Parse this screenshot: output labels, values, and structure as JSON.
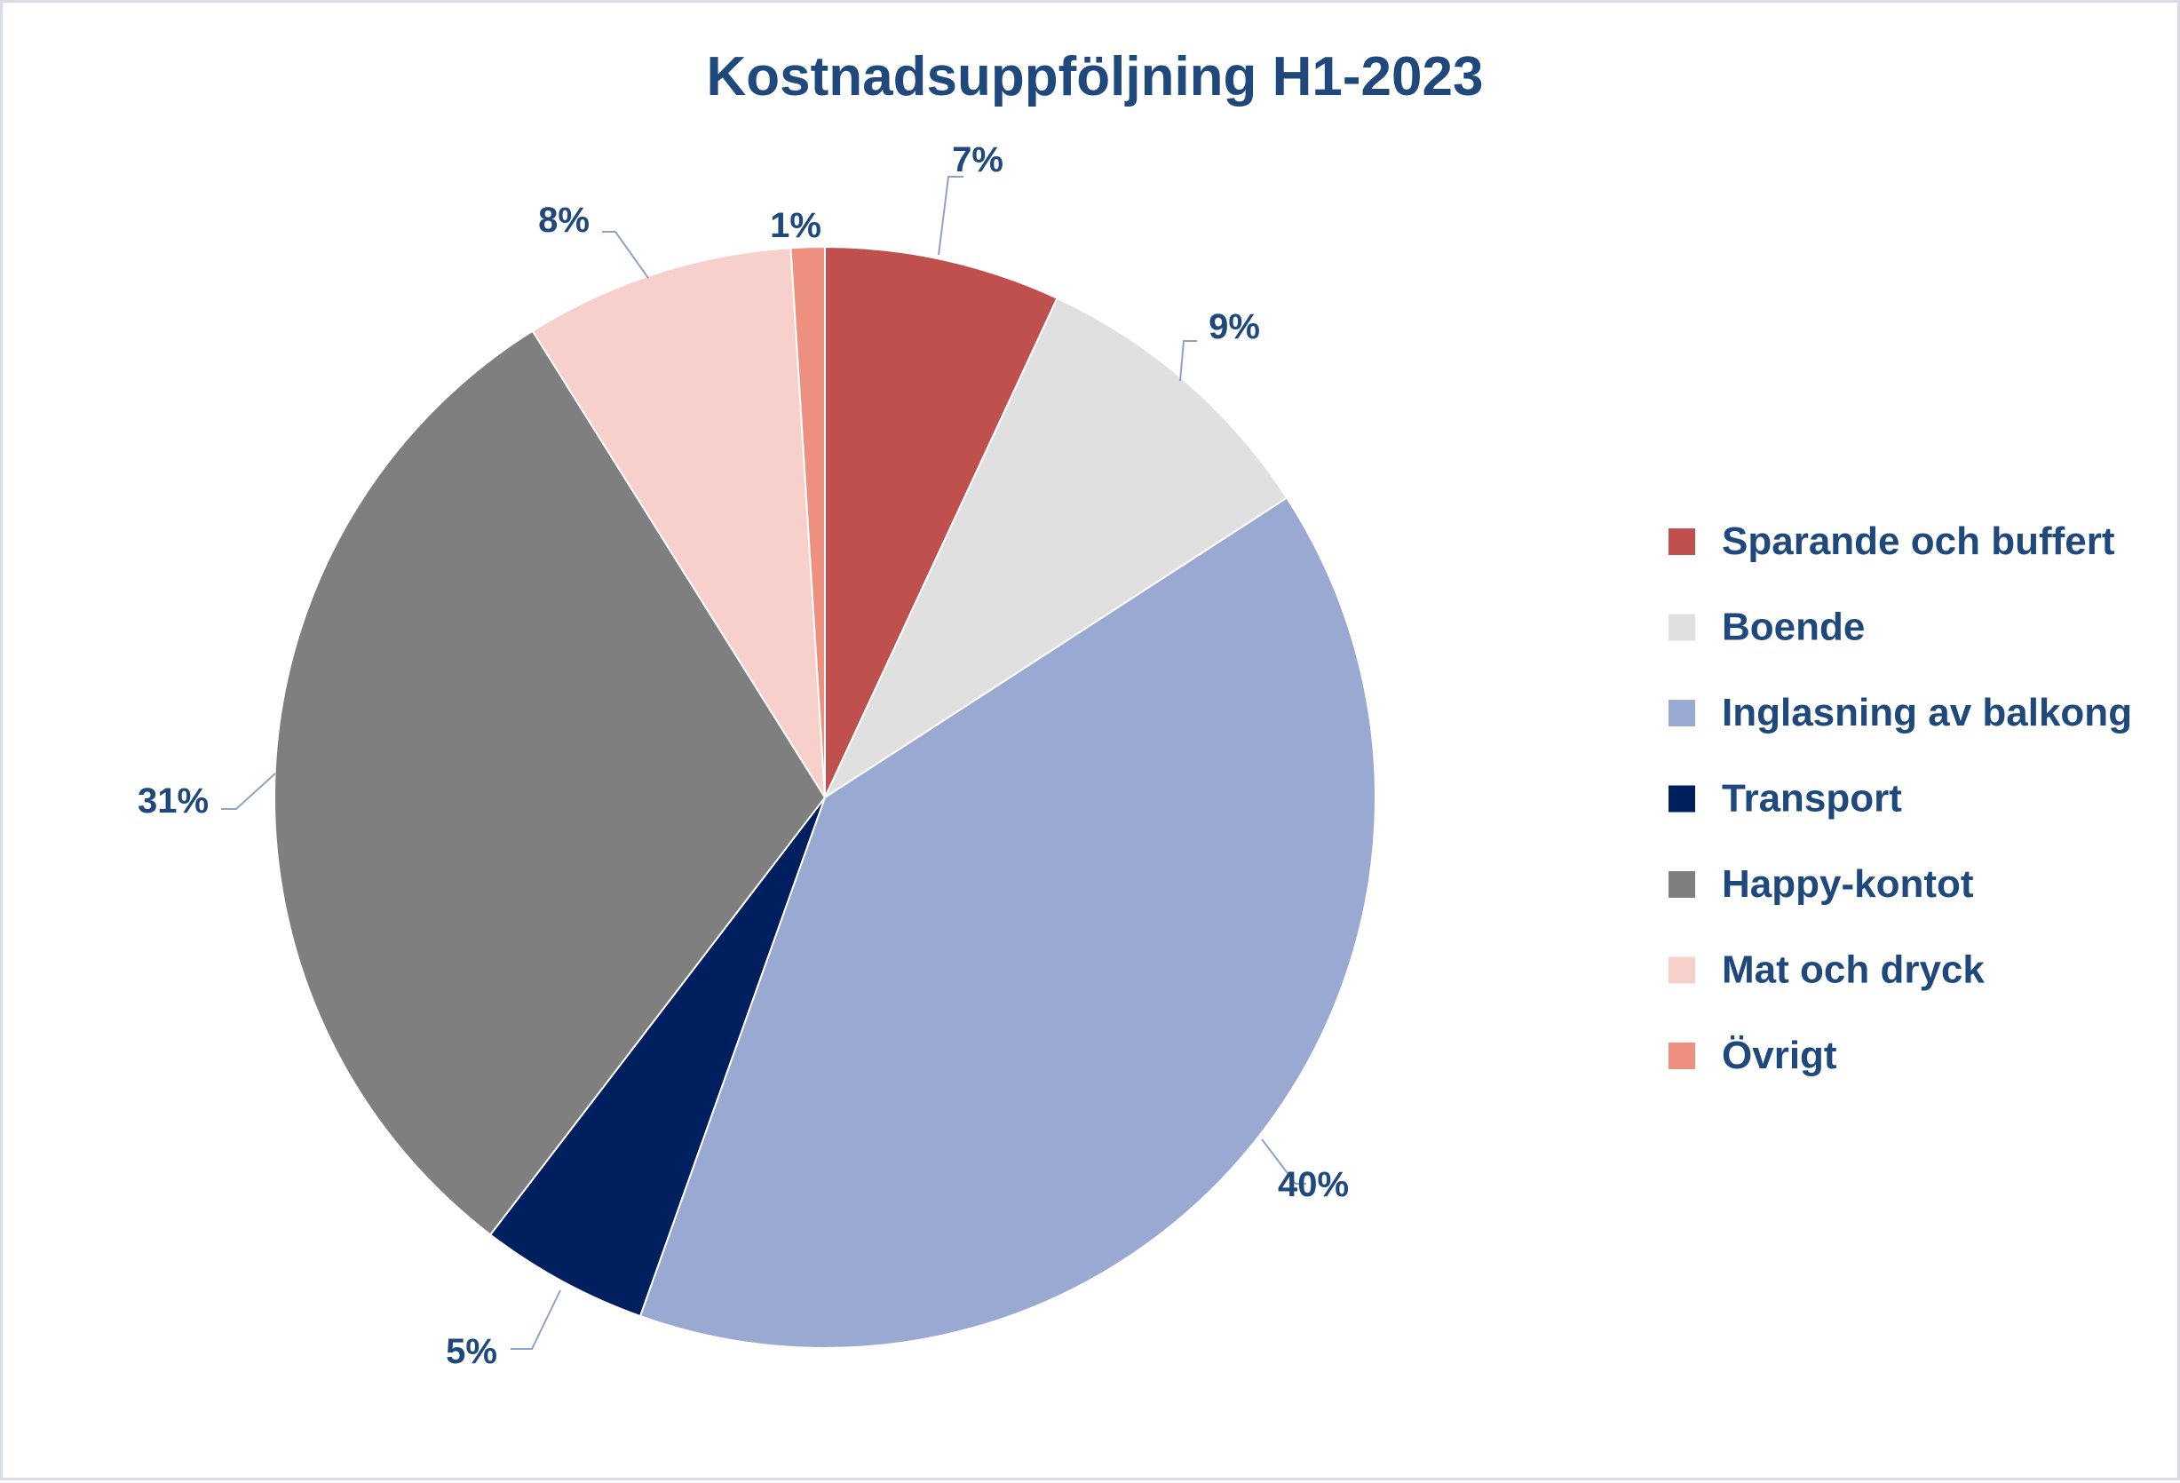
{
  "chart_data": {
    "type": "pie",
    "title": "Kostnadsuppföljning H1-2023",
    "categories": [
      "Sparande och buffert",
      "Boende",
      "Inglasning av balkong",
      "Transport",
      "Happy-kontot",
      "Mat och dryck",
      "Övrigt"
    ],
    "values": [
      7,
      9,
      40,
      5,
      31,
      8,
      1
    ],
    "data_labels": [
      "7%",
      "9%",
      "40%",
      "5%",
      "31%",
      "8%",
      "1%"
    ],
    "colors": [
      "#c0504d",
      "#e0e0e0",
      "#9aa9d1",
      "#001f5f",
      "#7f7f7f",
      "#f7d0cb",
      "#ee9080"
    ],
    "start_angle": "12 o'clock",
    "direction": "clockwise",
    "legend_position": "right"
  },
  "style": {
    "text_color": "#1f497d",
    "leader_color": "#8ea2c9",
    "frame_color": "#d9dce6"
  }
}
